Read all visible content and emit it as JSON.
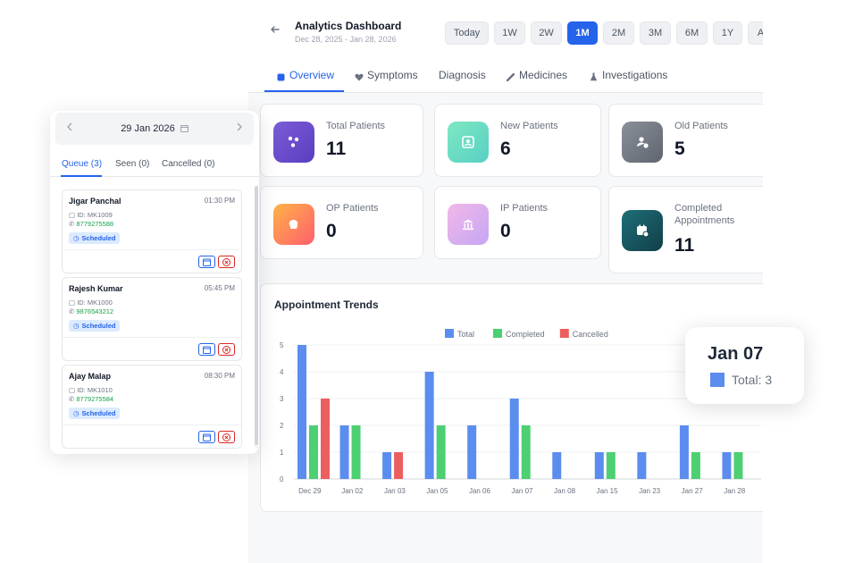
{
  "header": {
    "title": "Analytics Dashboard",
    "subtitle": "Dec 28, 2025 - Jan 28, 2026",
    "ranges": [
      "Today",
      "1W",
      "2W",
      "1M",
      "2M",
      "3M",
      "6M",
      "1Y",
      "All"
    ],
    "active_range": "1M"
  },
  "tabs": [
    "Overview",
    "Symptoms",
    "Diagnosis",
    "Medicines",
    "Investigations"
  ],
  "active_tab": "Overview",
  "stats": [
    {
      "label": "Total Patients",
      "value": "11",
      "icon": "nodes-icon"
    },
    {
      "label": "New Patients",
      "value": "6",
      "icon": "user-card-icon"
    },
    {
      "label": "Old Patients",
      "value": "5",
      "icon": "user-check-icon"
    },
    {
      "label": "OP Patients",
      "value": "0",
      "icon": "head-icon"
    },
    {
      "label": "IP Patients",
      "value": "0",
      "icon": "hospital-icon"
    },
    {
      "label": "Completed Appointments",
      "value": "11",
      "icon": "calendar-check-icon"
    }
  ],
  "chart_section_title": "Appointment Trends",
  "chart_data": {
    "type": "bar",
    "categories": [
      "Dec 29",
      "Jan 02",
      "Jan 03",
      "Jan 05",
      "Jan 06",
      "Jan 07",
      "Jan 08",
      "Jan 15",
      "Jan 23",
      "Jan 27",
      "Jan 28"
    ],
    "series": [
      {
        "name": "Total",
        "color": "#5b8def",
        "values": [
          5,
          2,
          1,
          4,
          2,
          3,
          1,
          1,
          1,
          2,
          1
        ]
      },
      {
        "name": "Completed",
        "color": "#4cd072",
        "values": [
          2,
          2,
          0,
          2,
          0,
          2,
          0,
          1,
          0,
          1,
          1
        ]
      },
      {
        "name": "Cancelled",
        "color": "#ec5f5f",
        "values": [
          3,
          0,
          1,
          0,
          0,
          0,
          0,
          0,
          0,
          0,
          0
        ]
      }
    ],
    "yticks": [
      "0",
      "1",
      "2",
      "3",
      "4",
      "5"
    ],
    "ylim": [
      0,
      5
    ],
    "legend": "top-center",
    "grid": true
  },
  "tooltip": {
    "title": "Jan 07",
    "text": "Total: 3",
    "color": "#5b8def"
  },
  "queue": {
    "date": "29 Jan 2026",
    "tabs": [
      "Queue (3)",
      "Seen (0)",
      "Cancelled (0)"
    ],
    "patients": [
      {
        "name": "Jigar Panchal",
        "time": "01:30 PM",
        "id": "ID: MK1009",
        "phone": "8779275588",
        "status": "Scheduled"
      },
      {
        "name": "Rajesh Kumar",
        "time": "05:45 PM",
        "id": "ID: MK1000",
        "phone": "9876543212",
        "status": "Scheduled"
      },
      {
        "name": "Ajay Malap",
        "time": "08:30 PM",
        "id": "ID: MK1010",
        "phone": "8779275584",
        "status": "Scheduled"
      }
    ]
  }
}
